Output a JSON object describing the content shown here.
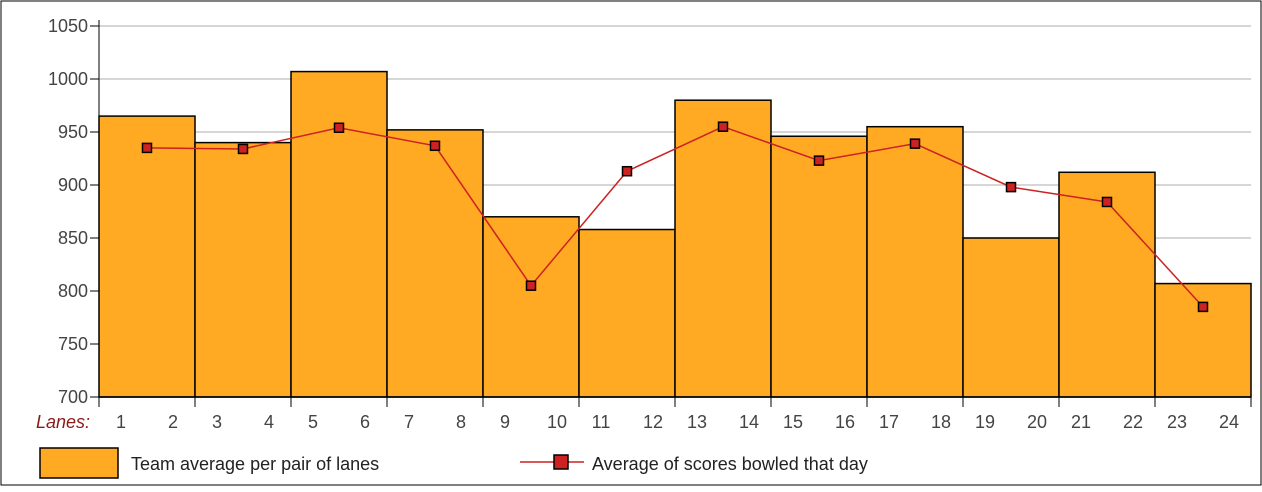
{
  "chart_data": {
    "type": "bar",
    "title": "",
    "ylim": [
      700,
      1050
    ],
    "yticks": [
      700,
      750,
      800,
      850,
      900,
      950,
      1000,
      1050
    ],
    "grid": true,
    "legend_position": "bottom",
    "x_axis_title": "Lanes:",
    "lane_labels": [
      "1",
      "2",
      "3",
      "4",
      "5",
      "6",
      "7",
      "8",
      "9",
      "10",
      "11",
      "12",
      "13",
      "14",
      "15",
      "16",
      "17",
      "18",
      "19",
      "20",
      "21",
      "22",
      "23",
      "24"
    ],
    "categories": [
      "1-2",
      "3-4",
      "5-6",
      "7-8",
      "9-10",
      "11-12",
      "13-14",
      "15-16",
      "17-18",
      "19-20",
      "21-22",
      "23-24"
    ],
    "series": [
      {
        "name": "Team average per pair of lanes",
        "type": "bar",
        "color": "#FFAA22",
        "values": [
          965,
          940,
          1007,
          952,
          870,
          858,
          980,
          946,
          955,
          850,
          912,
          807
        ]
      },
      {
        "name": "Average of scores bowled that day",
        "type": "line",
        "color": "#CC2222",
        "values": [
          935,
          934,
          954,
          937,
          805,
          913,
          955,
          923,
          939,
          898,
          884,
          785
        ]
      }
    ]
  }
}
